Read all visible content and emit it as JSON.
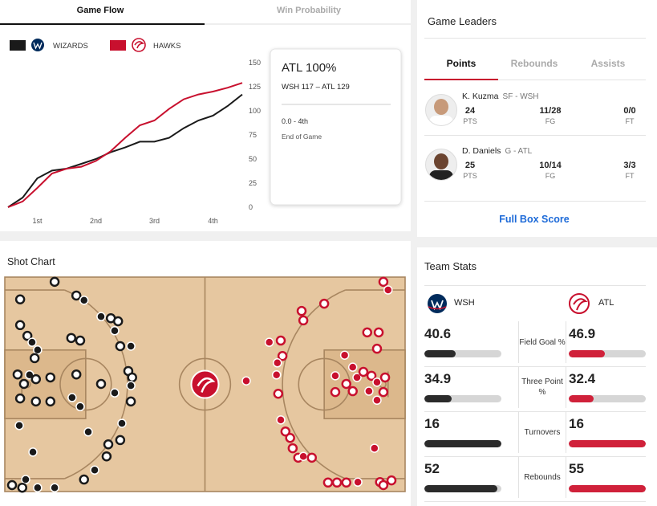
{
  "tabs": [
    "Game Flow",
    "Win Probability"
  ],
  "chart_data": {
    "type": "line",
    "x": [
      0,
      3,
      6,
      9,
      12,
      15,
      18,
      21,
      24,
      27,
      30,
      33,
      36,
      39,
      42,
      45,
      48
    ],
    "xlim": [
      0,
      48
    ],
    "xticks": [
      {
        "value": 6,
        "label": "1st"
      },
      {
        "value": 18,
        "label": "2nd"
      },
      {
        "value": 30,
        "label": "3rd"
      },
      {
        "value": 42,
        "label": "4th"
      }
    ],
    "ylim": [
      0,
      150
    ],
    "yticks": [
      0,
      25,
      50,
      75,
      100,
      125,
      150
    ],
    "series": [
      {
        "name": "WIZARDS",
        "color": "#1a1a1a",
        "values": [
          0,
          10,
          30,
          38,
          40,
          45,
          50,
          57,
          62,
          68,
          68,
          72,
          82,
          90,
          95,
          105,
          117
        ]
      },
      {
        "name": "HAWKS",
        "color": "#c8102e",
        "values": [
          0,
          6,
          20,
          35,
          40,
          42,
          48,
          58,
          72,
          85,
          90,
          102,
          112,
          117,
          120,
          124,
          129
        ]
      }
    ]
  },
  "win_probability": {
    "headline": "ATL 100%",
    "score": "WSH 117 – ATL 129",
    "time": "0.0 - 4th",
    "status": "End of Game"
  },
  "game_leaders": {
    "title": "Game Leaders",
    "tabs": [
      "Points",
      "Rebounds",
      "Assists"
    ],
    "players": [
      {
        "name": "K. Kuzma",
        "position": "SF - WSH",
        "stats": [
          [
            "24",
            "PTS"
          ],
          [
            "11/28",
            "FG"
          ],
          [
            "0/0",
            "FT"
          ]
        ]
      },
      {
        "name": "D. Daniels",
        "position": "G - ATL",
        "stats": [
          [
            "25",
            "PTS"
          ],
          [
            "10/14",
            "FG"
          ],
          [
            "3/3",
            "FT"
          ]
        ]
      }
    ],
    "link": "Full Box Score"
  },
  "shot_chart": {
    "title": "Shot Chart",
    "xlim": [
      0,
      94
    ],
    "ylim": [
      0,
      50
    ],
    "teams": [
      {
        "name": "WSH",
        "color": "#1a1a1a",
        "x": [
          11.7,
          3.6,
          16.8,
          18.6,
          22.6,
          24.9,
          26.6,
          25.8,
          3.6,
          5.3,
          6.4,
          7.7,
          7.0,
          15.6,
          17.7,
          27.1,
          29.6,
          3.0,
          5.8,
          4.5,
          7.3,
          10.7,
          16.8,
          22.6,
          29.0,
          29.9,
          29.6,
          25.8,
          15.8,
          17.7,
          3.6,
          7.3,
          10.7,
          29.6,
          27.5,
          19.6,
          27.1,
          24.3,
          23.9,
          21.1,
          18.6,
          6.6,
          3.4,
          4.9,
          1.7,
          4.1,
          7.7,
          11.7
        ],
        "y": [
          1.1,
          5.2,
          4.3,
          5.4,
          9.2,
          9.6,
          10.3,
          12.5,
          11.2,
          13.7,
          15.2,
          17.0,
          18.9,
          14.2,
          14.8,
          16.1,
          16.1,
          22.7,
          22.8,
          24.9,
          23.8,
          23.4,
          22.7,
          24.9,
          21.9,
          23.4,
          25.3,
          27.0,
          28.1,
          30.2,
          28.3,
          29.0,
          29.0,
          29.0,
          34.1,
          36.1,
          38.0,
          39.0,
          41.8,
          45.0,
          47.2,
          40.8,
          34.6,
          47.2,
          48.5,
          49.1,
          49.1,
          49.1
        ],
        "made": [
          false,
          false,
          false,
          true,
          true,
          false,
          false,
          true,
          false,
          false,
          true,
          true,
          false,
          false,
          false,
          false,
          true,
          false,
          true,
          false,
          false,
          false,
          false,
          false,
          false,
          false,
          true,
          true,
          true,
          true,
          false,
          false,
          false,
          false,
          true,
          true,
          false,
          false,
          false,
          true,
          false,
          true,
          true,
          true,
          false,
          false,
          true,
          true
        ]
      },
      {
        "name": "ATL",
        "color": "#c8102e",
        "x": [
          88.9,
          90.0,
          75.0,
          69.7,
          70.1,
          85.1,
          87.8,
          62.1,
          64.8,
          65.2,
          87.4,
          79.8,
          64.0,
          56.7,
          63.8,
          77.6,
          81.7,
          82.7,
          84.2,
          86.1,
          87.4,
          89.3,
          80.2,
          81.7,
          85.5,
          87.4,
          88.9,
          77.6,
          64.2,
          64.8,
          65.9,
          67.0,
          67.6,
          68.9,
          70.1,
          72.1,
          86.8,
          75.9,
          78.0,
          80.2,
          82.9,
          88.1,
          90.8,
          88.9
        ],
        "y": [
          1.1,
          3.0,
          6.2,
          7.9,
          10.1,
          12.9,
          12.9,
          15.2,
          14.8,
          18.4,
          16.7,
          18.2,
          20.0,
          24.2,
          22.8,
          23.0,
          21.0,
          23.4,
          22.1,
          23.0,
          24.5,
          23.4,
          24.9,
          26.6,
          26.6,
          28.7,
          26.8,
          26.8,
          27.2,
          33.3,
          36.0,
          37.5,
          39.9,
          42.1,
          41.8,
          42.1,
          39.9,
          47.9,
          47.9,
          47.9,
          47.8,
          47.8,
          47.4,
          48.5
        ],
        "made": [
          false,
          true,
          false,
          false,
          false,
          false,
          false,
          true,
          false,
          false,
          false,
          true,
          true,
          true,
          true,
          true,
          true,
          true,
          false,
          false,
          true,
          false,
          false,
          false,
          true,
          true,
          false,
          false,
          false,
          true,
          false,
          false,
          false,
          false,
          true,
          false,
          true,
          false,
          false,
          false,
          true,
          false,
          false,
          false
        ]
      }
    ]
  },
  "team_stats": {
    "title": "Team Stats",
    "teams": [
      {
        "name": "WSH",
        "color": "#2b2b2b"
      },
      {
        "name": "ATL",
        "color": "#d0213a"
      }
    ],
    "rows": [
      {
        "label": "Field Goal %",
        "values": [
          40.6,
          46.9
        ],
        "scale": "percent"
      },
      {
        "label": "Three Point %",
        "values": [
          34.9,
          32.4
        ],
        "scale": "percent"
      },
      {
        "label": "Turnovers",
        "values": [
          16,
          16
        ],
        "scale": "relative"
      },
      {
        "label": "Rebounds",
        "values": [
          52,
          55
        ],
        "scale": "relative"
      }
    ]
  }
}
